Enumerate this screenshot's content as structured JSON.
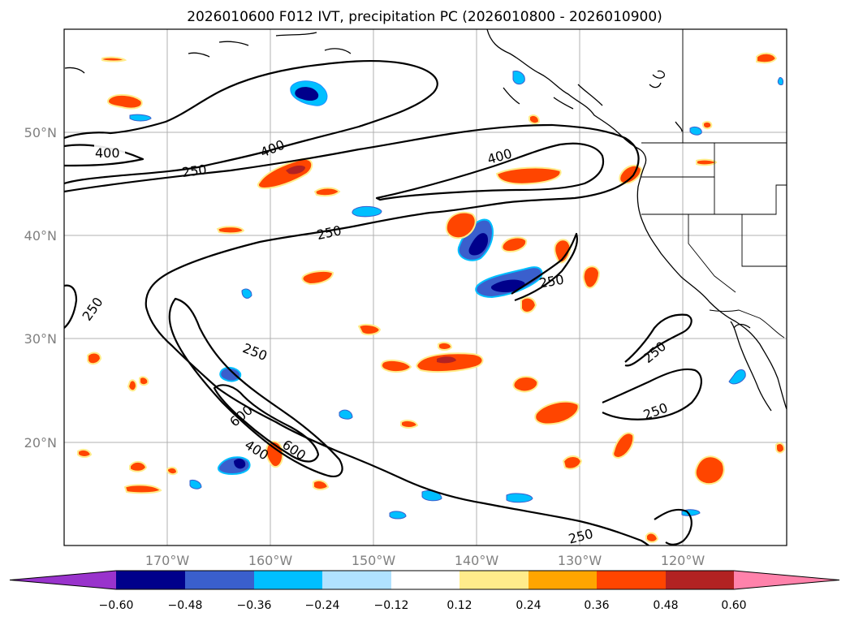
{
  "title": "2026010600 F012 IVT, precipitation PC (2026010800 - 2026010900)",
  "lat_labels": [
    "50°N",
    "40°N",
    "30°N",
    "20°N"
  ],
  "lon_labels": [
    "170°W",
    "160°W",
    "150°W",
    "140°W",
    "130°W",
    "120°W"
  ],
  "contour_labels": [
    "400",
    "400",
    "250",
    "400",
    "250",
    "250",
    "250",
    "250",
    "250",
    "250",
    "250",
    "600",
    "400",
    "600"
  ],
  "colorbar": {
    "colors": [
      "#9933cc",
      "#00008b",
      "#3a5fcd",
      "#00bfff",
      "#b0e2ff",
      "#ffffff",
      "#ffec8b",
      "#ffa500",
      "#ff4500",
      "#b22222",
      "#ff82ab"
    ],
    "tick_labels": [
      "−0.60",
      "−0.48",
      "−0.36",
      "−0.24",
      "−0.12",
      "0.12",
      "0.24",
      "0.36",
      "0.48",
      "0.60"
    ]
  }
}
